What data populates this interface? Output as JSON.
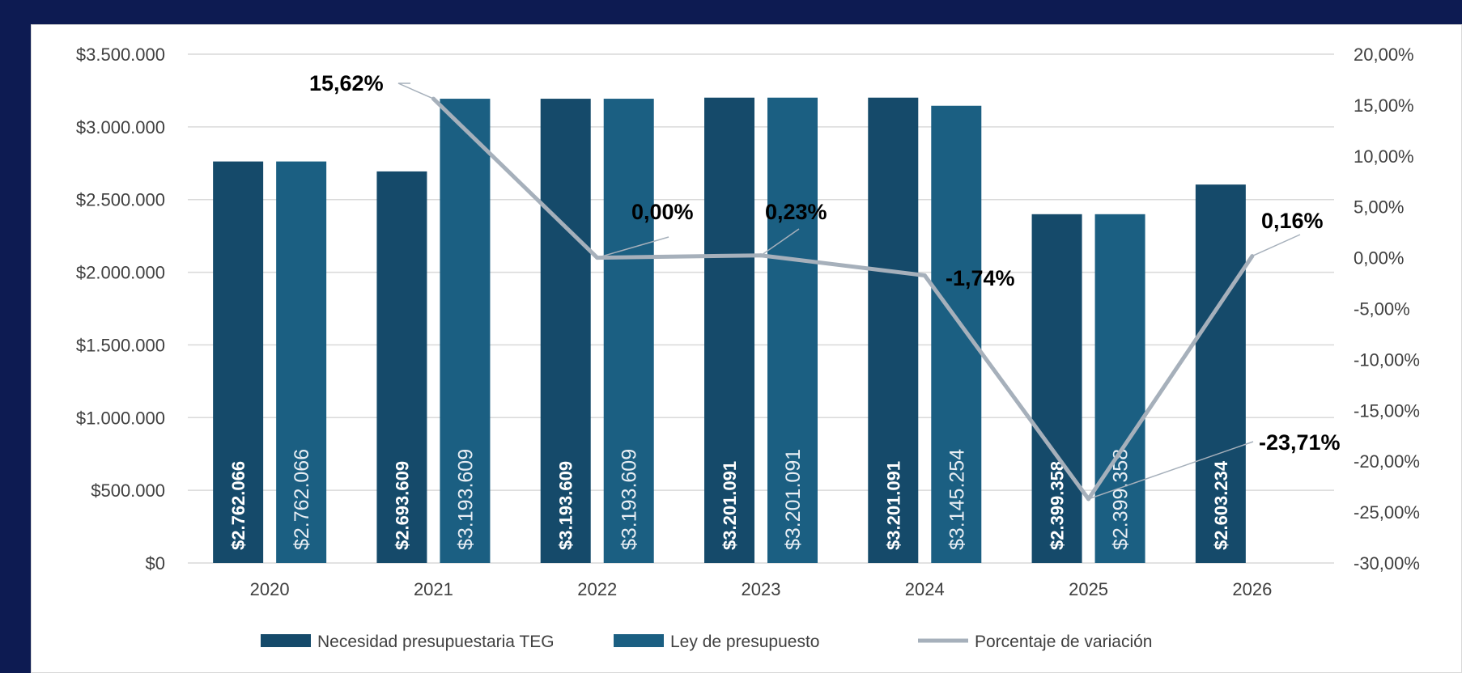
{
  "chart_data": {
    "type": "bar",
    "categories": [
      "2020",
      "2021",
      "2022",
      "2023",
      "2024",
      "2025",
      "2026"
    ],
    "series": [
      {
        "name": "Necesidad presupuestaria TEG",
        "kind": "bar",
        "axis": "left",
        "color": "#154a6a",
        "values": [
          2762066,
          2693609,
          3193609,
          3201091,
          3201091,
          2399358,
          2603234
        ],
        "labels": [
          "$2.762.066",
          "$2.693.609",
          "$3.193.609",
          "$3.201.091",
          "$3.201.091",
          "$2.399.358",
          "$2.603.234"
        ]
      },
      {
        "name": "Ley de presupuesto",
        "kind": "bar",
        "axis": "left",
        "color": "#1b5f82",
        "values": [
          2762066,
          3193609,
          3193609,
          3201091,
          3145254,
          2399358,
          null
        ],
        "labels": [
          "$2.762.066",
          "$3.193.609",
          "$3.193.609",
          "$3.201.091",
          "$3.145.254",
          "$2.399.358",
          ""
        ]
      },
      {
        "name": "Porcentaje de variación",
        "kind": "line",
        "axis": "right",
        "color": "#a6b0bb",
        "values": [
          null,
          15.62,
          0.0,
          0.23,
          -1.74,
          -23.71,
          0.16
        ],
        "labels": [
          "",
          "15,62%",
          "0,00%",
          "0,23%",
          "-1,74%",
          "-23,71%",
          "0,16%"
        ]
      }
    ],
    "y_left": {
      "ylim": [
        0,
        3500000
      ],
      "ticks": [
        "$0",
        "$500.000",
        "$1.000.000",
        "$1.500.000",
        "$2.000.000",
        "$2.500.000",
        "$3.000.000",
        "$3.500.000"
      ]
    },
    "y_right": {
      "ylim": [
        -30,
        20
      ],
      "ticks": [
        "-30,00%",
        "-25,00%",
        "-20,00%",
        "-15,00%",
        "-10,00%",
        "-5,00%",
        "0,00%",
        "5,00%",
        "10,00%",
        "15,00%",
        "20,00%"
      ]
    },
    "grid": true,
    "legend_position": "bottom"
  },
  "colors": {
    "background": "#0d1b52",
    "panel": "#ffffff",
    "gridline": "#d9d9d9"
  }
}
